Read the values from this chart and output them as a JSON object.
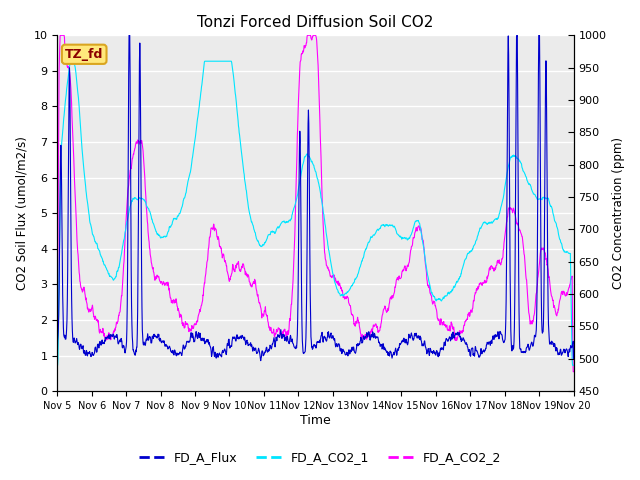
{
  "title": "Tonzi Forced Diffusion Soil CO2",
  "xlabel": "Time",
  "ylabel_left": "CO2 Soil Flux (umol/m2/s)",
  "ylabel_right": "CO2 Concentration (ppm)",
  "ylim_left": [
    0.0,
    10.0
  ],
  "ylim_right": [
    450,
    1000
  ],
  "yticks_left": [
    0.0,
    1.0,
    2.0,
    3.0,
    4.0,
    5.0,
    6.0,
    7.0,
    8.0,
    9.0,
    10.0
  ],
  "yticks_right": [
    450,
    500,
    550,
    600,
    650,
    700,
    750,
    800,
    850,
    900,
    950,
    1000
  ],
  "xtick_labels": [
    "Nov 5",
    "Nov 6",
    "Nov 7",
    "Nov 8",
    "Nov 9",
    "Nov 10",
    "Nov 11",
    "Nov 12",
    "Nov 13",
    "Nov 14",
    "Nov 15",
    "Nov 16",
    "Nov 17",
    "Nov 18",
    "Nov 19",
    "Nov 20"
  ],
  "color_flux": "#0000CD",
  "color_co2_1": "#00E5FF",
  "color_co2_2": "#FF00FF",
  "label_flux": "FD_A_Flux",
  "label_co2_1": "FD_A_CO2_1",
  "label_co2_2": "FD_A_CO2_2",
  "site_label": "TZ_fd",
  "site_label_bg": "#FFE87C",
  "site_label_border": "#DAA520",
  "site_label_text": "#8B0000",
  "background_color": "#EBEBEB",
  "fig_bg": "#FFFFFF",
  "linewidth_flux": 0.8,
  "linewidth_co2": 0.8
}
